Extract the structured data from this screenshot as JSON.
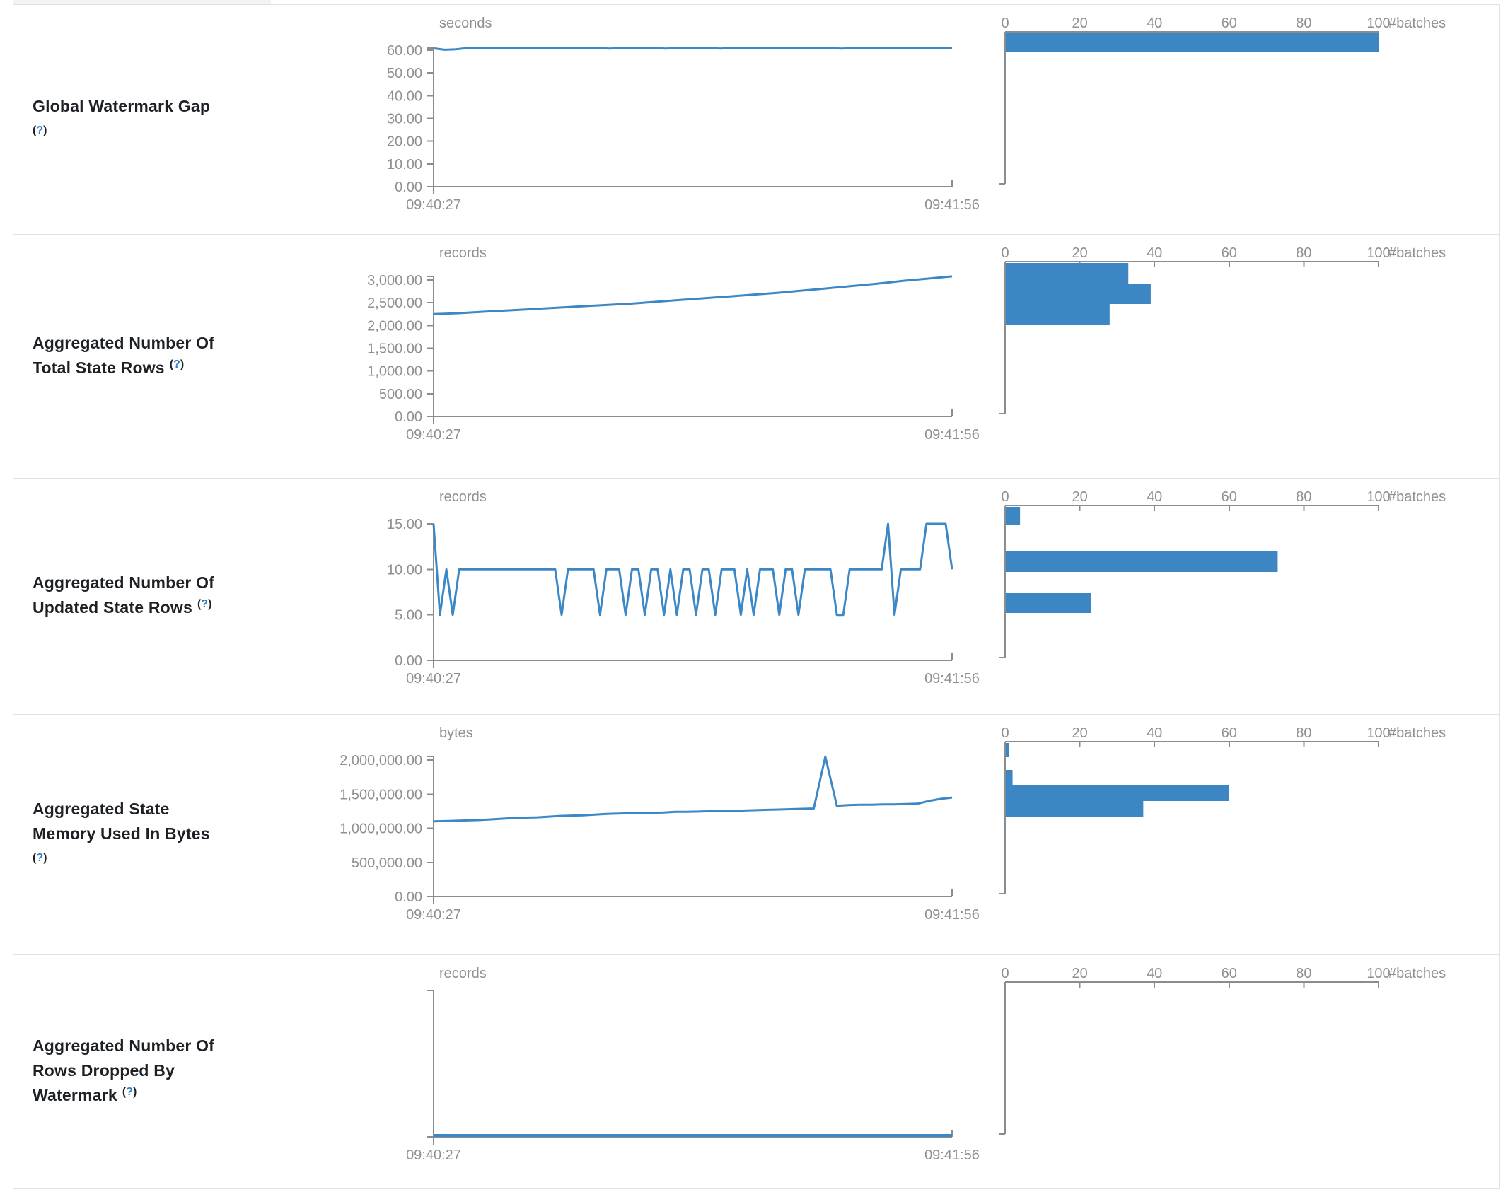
{
  "help_marker": {
    "open": "(",
    "question": "?",
    "close": ")"
  },
  "time_axis": {
    "start": "09:40:27",
    "end": "09:41:56"
  },
  "histogram_axis": {
    "ticks": [
      "0",
      "20",
      "40",
      "60",
      "80",
      "100"
    ],
    "label": "#batches"
  },
  "chart_data": [
    {
      "metric_lines": [
        "Global Watermark Gap"
      ],
      "help_inline": false,
      "timeline": {
        "type": "line",
        "unit": "seconds",
        "x_start": "09:40:27",
        "x_end": "09:41:56",
        "y_tick_labels": [
          "60.00",
          "50.00",
          "40.00",
          "30.00",
          "20.00",
          "10.00",
          "0.00"
        ],
        "y_max": 60,
        "values": [
          60.8,
          60.2,
          60.4,
          60.9,
          61,
          60.9,
          60.9,
          61,
          60.9,
          60.8,
          60.9,
          61,
          60.8,
          60.9,
          61,
          60.9,
          60.7,
          61,
          60.9,
          60.8,
          61,
          60.7,
          60.9,
          61,
          60.8,
          60.9,
          60.7,
          61,
          60.9,
          61,
          60.8,
          60.9,
          61,
          60.9,
          60.8,
          61,
          60.9,
          60.7,
          60.9,
          60.8,
          61,
          60.9,
          61,
          60.9,
          60.8,
          60.9,
          61,
          60.9
        ]
      },
      "histogram": {
        "type": "bar",
        "x_ticks": [
          "0",
          "20",
          "40",
          "60",
          "80",
          "100"
        ],
        "x_label": "#batches",
        "bars": [
          {
            "batches": 100,
            "offset": 2,
            "thickness": 26
          }
        ]
      }
    },
    {
      "metric_lines": [
        "Aggregated Number Of",
        "Total State Rows"
      ],
      "help_inline": true,
      "timeline": {
        "type": "line",
        "unit": "records",
        "x_start": "09:40:27",
        "x_end": "09:41:56",
        "y_tick_labels": [
          "3,000.00",
          "2,500.00",
          "2,000.00",
          "1,500.00",
          "1,000.00",
          "500.00",
          "0.00"
        ],
        "y_max": 3000,
        "values": [
          2250,
          2270,
          2300,
          2330,
          2360,
          2390,
          2420,
          2450,
          2480,
          2520,
          2560,
          2600,
          2640,
          2680,
          2720,
          2770,
          2820,
          2870,
          2920,
          2980,
          3030,
          3080
        ]
      },
      "histogram": {
        "type": "bar",
        "x_ticks": [
          "0",
          "20",
          "40",
          "60",
          "80",
          "100"
        ],
        "x_label": "#batches",
        "bars": [
          {
            "batches": 33,
            "offset": 2,
            "thickness": 29
          },
          {
            "batches": 39,
            "offset": 31,
            "thickness": 29
          },
          {
            "batches": 28,
            "offset": 60,
            "thickness": 29
          }
        ]
      }
    },
    {
      "metric_lines": [
        "Aggregated Number Of",
        "Updated State Rows"
      ],
      "help_inline": true,
      "timeline": {
        "type": "line",
        "unit": "records",
        "x_start": "09:40:27",
        "x_end": "09:41:56",
        "y_tick_labels": [
          "15.00",
          "10.00",
          "5.00",
          "0.00"
        ],
        "y_max": 15,
        "values": [
          15,
          5,
          10,
          5,
          10,
          10,
          10,
          10,
          10,
          10,
          10,
          10,
          10,
          10,
          10,
          10,
          10,
          10,
          10,
          10,
          5,
          10,
          10,
          10,
          10,
          10,
          5,
          10,
          10,
          10,
          5,
          10,
          10,
          5,
          10,
          10,
          5,
          10,
          5,
          10,
          10,
          5,
          10,
          10,
          5,
          10,
          10,
          10,
          5,
          10,
          5,
          10,
          10,
          10,
          5,
          10,
          10,
          5,
          10,
          10,
          10,
          10,
          10,
          5,
          5,
          10,
          10,
          10,
          10,
          10,
          10,
          15,
          5,
          10,
          10,
          10,
          10,
          15,
          15,
          15,
          15,
          10
        ]
      },
      "histogram": {
        "type": "bar",
        "x_ticks": [
          "0",
          "20",
          "40",
          "60",
          "80",
          "100"
        ],
        "x_label": "#batches",
        "bars": [
          {
            "batches": 4,
            "offset": 2,
            "thickness": 26
          },
          {
            "batches": 73,
            "offset": 64,
            "thickness": 30
          },
          {
            "batches": 23,
            "offset": 124,
            "thickness": 28
          }
        ]
      }
    },
    {
      "metric_lines": [
        "Aggregated State",
        "Memory Used In Bytes"
      ],
      "help_inline": false,
      "timeline": {
        "type": "line",
        "unit": "bytes",
        "x_start": "09:40:27",
        "x_end": "09:41:56",
        "y_tick_labels": [
          "2,000,000.00",
          "1,500,000.00",
          "1,000,000.00",
          "500,000.00",
          "0.00"
        ],
        "y_max": 2000000,
        "values": [
          1100000,
          1105000,
          1110000,
          1115000,
          1120000,
          1130000,
          1140000,
          1150000,
          1155000,
          1160000,
          1170000,
          1180000,
          1185000,
          1190000,
          1200000,
          1210000,
          1215000,
          1220000,
          1220000,
          1225000,
          1230000,
          1240000,
          1240000,
          1245000,
          1250000,
          1250000,
          1255000,
          1260000,
          1265000,
          1270000,
          1275000,
          1280000,
          1285000,
          1290000,
          2050000,
          1330000,
          1340000,
          1345000,
          1345000,
          1350000,
          1350000,
          1355000,
          1360000,
          1400000,
          1430000,
          1450000
        ]
      },
      "histogram": {
        "type": "bar",
        "x_ticks": [
          "0",
          "20",
          "40",
          "60",
          "80",
          "100"
        ],
        "x_label": "#batches",
        "bars": [
          {
            "batches": 1,
            "offset": 2,
            "thickness": 20
          },
          {
            "batches": 2,
            "offset": 40,
            "thickness": 22
          },
          {
            "batches": 60,
            "offset": 62,
            "thickness": 22
          },
          {
            "batches": 37,
            "offset": 84,
            "thickness": 22
          }
        ]
      }
    },
    {
      "metric_lines": [
        "Aggregated Number Of",
        "Rows Dropped By",
        "Watermark"
      ],
      "help_inline": true,
      "timeline": {
        "type": "line",
        "unit": "records",
        "x_start": "09:40:27",
        "x_end": "09:41:56",
        "y_tick_labels": [],
        "y_max": 1,
        "values": [
          0,
          0
        ]
      },
      "histogram": {
        "type": "bar",
        "x_ticks": [
          "0",
          "20",
          "40",
          "60",
          "80",
          "100"
        ],
        "x_label": "#batches",
        "bars": []
      }
    }
  ]
}
